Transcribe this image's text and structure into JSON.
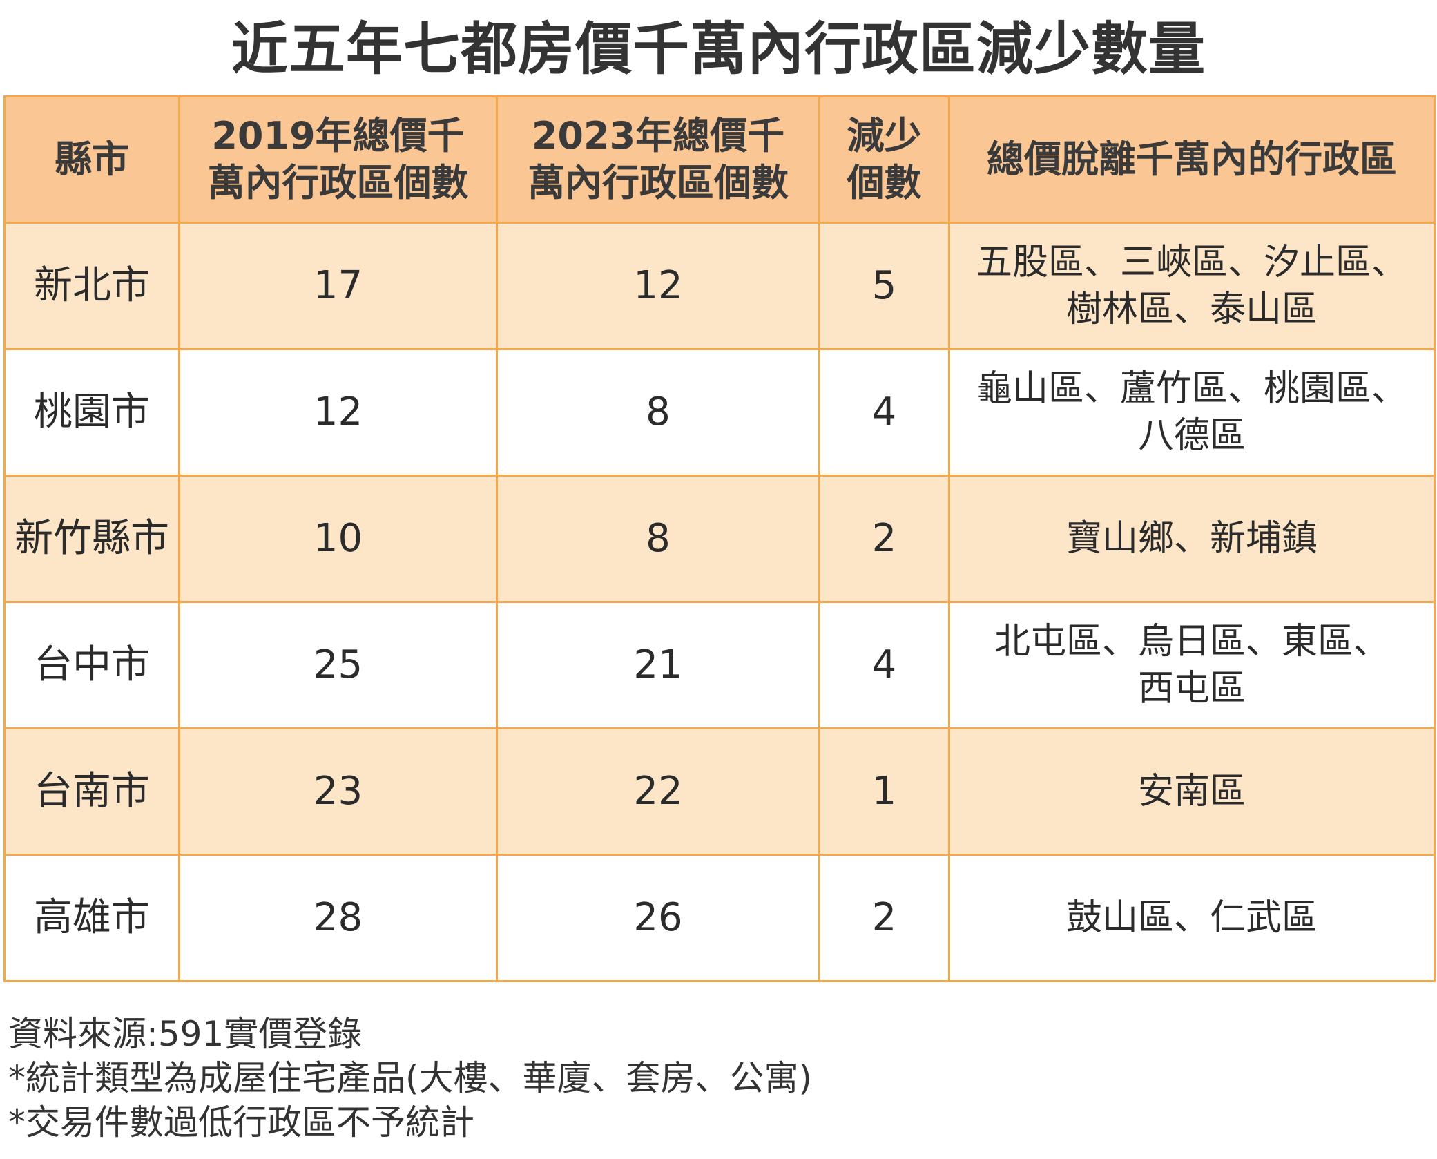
{
  "title": "近五年七都房價千萬內行政區減少數量",
  "table": {
    "headers": {
      "county": [
        "縣市"
      ],
      "count_2019": [
        "2019年總價千",
        "萬內行政區個數"
      ],
      "count_2023": [
        "2023年總價千",
        "萬內行政區個數"
      ],
      "decrease": [
        "減少",
        "個數"
      ],
      "districts": [
        "總價脫離千萬內的行政區"
      ]
    },
    "rows": [
      {
        "county": "新北市",
        "count_2019": "17",
        "count_2023": "12",
        "decrease": "5",
        "districts": [
          "五股區、三峽區、汐止區、",
          "樹林區、泰山區"
        ]
      },
      {
        "county": "桃園市",
        "count_2019": "12",
        "count_2023": "8",
        "decrease": "4",
        "districts": [
          "龜山區、蘆竹區、桃園區、",
          "八德區"
        ]
      },
      {
        "county": "新竹縣市",
        "count_2019": "10",
        "count_2023": "8",
        "decrease": "2",
        "districts": [
          "寶山鄉、新埔鎮"
        ]
      },
      {
        "county": "台中市",
        "count_2019": "25",
        "count_2023": "21",
        "decrease": "4",
        "districts": [
          "北屯區、烏日區、東區、",
          "西屯區"
        ]
      },
      {
        "county": "台南市",
        "count_2019": "23",
        "count_2023": "22",
        "decrease": "1",
        "districts": [
          "安南區"
        ]
      },
      {
        "county": "高雄市",
        "count_2019": "28",
        "count_2023": "26",
        "decrease": "2",
        "districts": [
          "鼓山區、仁武區"
        ]
      }
    ]
  },
  "notes": [
    "資料來源:591實價登錄",
    "*統計類型為成屋住宅產品(大樓、華廈、套房、公寓)",
    "*交易件數過低行政區不予統計"
  ],
  "colors": {
    "header_bg": "#f9c694",
    "odd_row_bg": "#fde6c8",
    "even_row_bg": "#ffffff",
    "border": "#f4a84e"
  }
}
